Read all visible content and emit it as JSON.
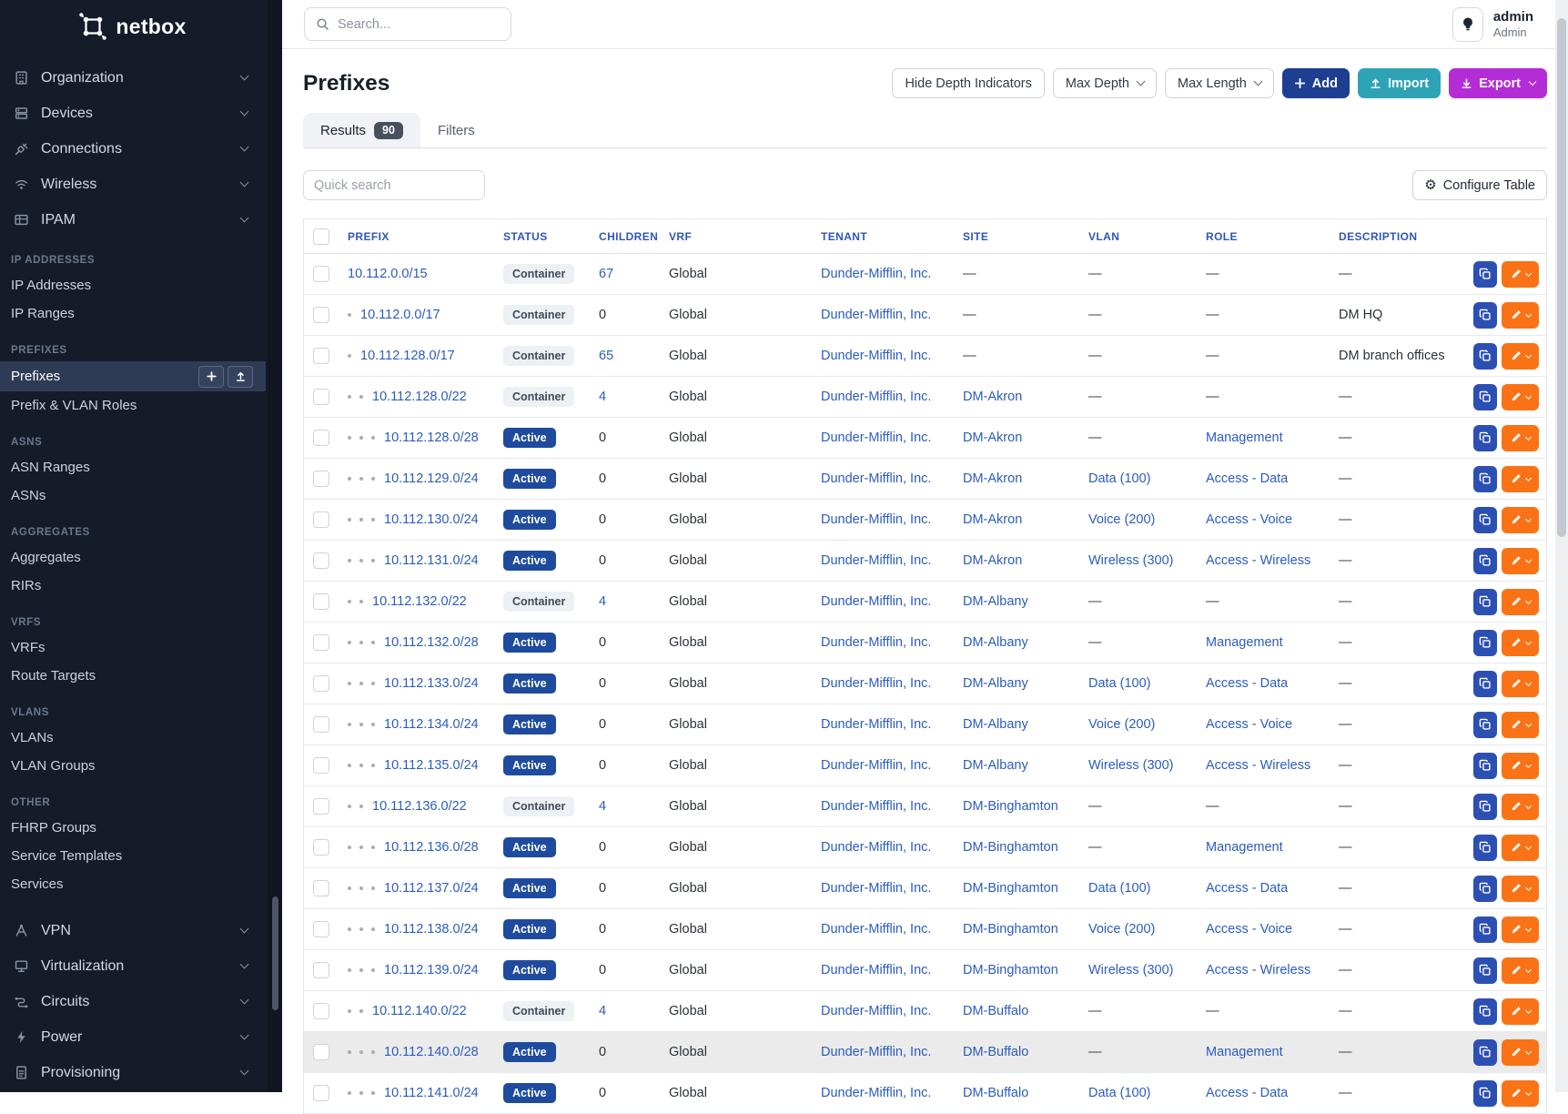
{
  "sidebar": {
    "brand": "netbox",
    "menus": [
      {
        "icon": "organization-icon",
        "label": "Organization"
      },
      {
        "icon": "devices-icon",
        "label": "Devices"
      },
      {
        "icon": "connections-icon",
        "label": "Connections"
      },
      {
        "icon": "wireless-icon",
        "label": "Wireless"
      },
      {
        "icon": "ipam-icon",
        "label": "IPAM"
      }
    ],
    "sections": [
      {
        "label": "IP ADDRESSES",
        "items": [
          {
            "label": "IP Addresses"
          },
          {
            "label": "IP Ranges"
          }
        ]
      },
      {
        "label": "PREFIXES",
        "items": [
          {
            "label": "Prefixes",
            "active": true
          },
          {
            "label": "Prefix & VLAN Roles"
          }
        ]
      },
      {
        "label": "ASNS",
        "items": [
          {
            "label": "ASN Ranges"
          },
          {
            "label": "ASNs"
          }
        ]
      },
      {
        "label": "AGGREGATES",
        "items": [
          {
            "label": "Aggregates"
          },
          {
            "label": "RIRs"
          }
        ]
      },
      {
        "label": "VRFS",
        "items": [
          {
            "label": "VRFs"
          },
          {
            "label": "Route Targets"
          }
        ]
      },
      {
        "label": "VLANS",
        "items": [
          {
            "label": "VLANs"
          },
          {
            "label": "VLAN Groups"
          }
        ]
      },
      {
        "label": "OTHER",
        "items": [
          {
            "label": "FHRP Groups"
          },
          {
            "label": "Service Templates"
          },
          {
            "label": "Services"
          }
        ]
      }
    ],
    "menus_bottom": [
      {
        "icon": "vpn-icon",
        "label": "VPN"
      },
      {
        "icon": "virtualization-icon",
        "label": "Virtualization"
      },
      {
        "icon": "circuits-icon",
        "label": "Circuits"
      },
      {
        "icon": "power-icon",
        "label": "Power"
      },
      {
        "icon": "provisioning-icon",
        "label": "Provisioning"
      }
    ]
  },
  "topbar": {
    "search_placeholder": "Search...",
    "user": {
      "name": "admin",
      "role": "Admin"
    }
  },
  "page": {
    "title": "Prefixes",
    "actions": {
      "hide_depth": "Hide Depth Indicators",
      "max_depth": "Max Depth",
      "max_length": "Max Length",
      "add": "Add",
      "import": "Import",
      "export": "Export"
    },
    "tabs": {
      "results": "Results",
      "results_count": "90",
      "filters": "Filters"
    },
    "quick_search_placeholder": "Quick search",
    "configure_table": "Configure Table"
  },
  "colors": {
    "link": "#2b5cbf",
    "active_badge": "#1e4b9d",
    "add_button": "#1d3e91",
    "import_button": "#2fa3b6",
    "export_button": "#b42cd6",
    "edit_button": "#f97316",
    "clone_button": "#2c4fb3",
    "sidebar_bg": "#151b29"
  },
  "table": {
    "headers": [
      "PREFIX",
      "STATUS",
      "CHILDREN",
      "VRF",
      "TENANT",
      "SITE",
      "VLAN",
      "ROLE",
      "DESCRIPTION"
    ],
    "rows": [
      {
        "depth": 0,
        "prefix": "10.112.0.0/15",
        "status": "Container",
        "children": "67",
        "vrf": "Global",
        "tenant": "Dunder-Mifflin, Inc.",
        "site": "—",
        "vlan": "—",
        "role": "—",
        "description": "—",
        "highlighted": false
      },
      {
        "depth": 1,
        "prefix": "10.112.0.0/17",
        "status": "Container",
        "children": "0",
        "vrf": "Global",
        "tenant": "Dunder-Mifflin, Inc.",
        "site": "—",
        "vlan": "—",
        "role": "—",
        "description": "DM HQ",
        "highlighted": false
      },
      {
        "depth": 1,
        "prefix": "10.112.128.0/17",
        "status": "Container",
        "children": "65",
        "vrf": "Global",
        "tenant": "Dunder-Mifflin, Inc.",
        "site": "—",
        "vlan": "—",
        "role": "—",
        "description": "DM branch offices",
        "highlighted": false
      },
      {
        "depth": 2,
        "prefix": "10.112.128.0/22",
        "status": "Container",
        "children": "4",
        "vrf": "Global",
        "tenant": "Dunder-Mifflin, Inc.",
        "site": "DM-Akron",
        "vlan": "—",
        "role": "—",
        "description": "—",
        "highlighted": false
      },
      {
        "depth": 3,
        "prefix": "10.112.128.0/28",
        "status": "Active",
        "children": "0",
        "vrf": "Global",
        "tenant": "Dunder-Mifflin, Inc.",
        "site": "DM-Akron",
        "vlan": "—",
        "role": "Management",
        "description": "—",
        "highlighted": false
      },
      {
        "depth": 3,
        "prefix": "10.112.129.0/24",
        "status": "Active",
        "children": "0",
        "vrf": "Global",
        "tenant": "Dunder-Mifflin, Inc.",
        "site": "DM-Akron",
        "vlan": "Data (100)",
        "role": "Access - Data",
        "description": "—",
        "highlighted": false
      },
      {
        "depth": 3,
        "prefix": "10.112.130.0/24",
        "status": "Active",
        "children": "0",
        "vrf": "Global",
        "tenant": "Dunder-Mifflin, Inc.",
        "site": "DM-Akron",
        "vlan": "Voice (200)",
        "role": "Access - Voice",
        "description": "—",
        "highlighted": false
      },
      {
        "depth": 3,
        "prefix": "10.112.131.0/24",
        "status": "Active",
        "children": "0",
        "vrf": "Global",
        "tenant": "Dunder-Mifflin, Inc.",
        "site": "DM-Akron",
        "vlan": "Wireless (300)",
        "role": "Access - Wireless",
        "description": "—",
        "highlighted": false
      },
      {
        "depth": 2,
        "prefix": "10.112.132.0/22",
        "status": "Container",
        "children": "4",
        "vrf": "Global",
        "tenant": "Dunder-Mifflin, Inc.",
        "site": "DM-Albany",
        "vlan": "—",
        "role": "—",
        "description": "—",
        "highlighted": false
      },
      {
        "depth": 3,
        "prefix": "10.112.132.0/28",
        "status": "Active",
        "children": "0",
        "vrf": "Global",
        "tenant": "Dunder-Mifflin, Inc.",
        "site": "DM-Albany",
        "vlan": "—",
        "role": "Management",
        "description": "—",
        "highlighted": false
      },
      {
        "depth": 3,
        "prefix": "10.112.133.0/24",
        "status": "Active",
        "children": "0",
        "vrf": "Global",
        "tenant": "Dunder-Mifflin, Inc.",
        "site": "DM-Albany",
        "vlan": "Data (100)",
        "role": "Access - Data",
        "description": "—",
        "highlighted": false
      },
      {
        "depth": 3,
        "prefix": "10.112.134.0/24",
        "status": "Active",
        "children": "0",
        "vrf": "Global",
        "tenant": "Dunder-Mifflin, Inc.",
        "site": "DM-Albany",
        "vlan": "Voice (200)",
        "role": "Access - Voice",
        "description": "—",
        "highlighted": false
      },
      {
        "depth": 3,
        "prefix": "10.112.135.0/24",
        "status": "Active",
        "children": "0",
        "vrf": "Global",
        "tenant": "Dunder-Mifflin, Inc.",
        "site": "DM-Albany",
        "vlan": "Wireless (300)",
        "role": "Access - Wireless",
        "description": "—",
        "highlighted": false
      },
      {
        "depth": 2,
        "prefix": "10.112.136.0/22",
        "status": "Container",
        "children": "4",
        "vrf": "Global",
        "tenant": "Dunder-Mifflin, Inc.",
        "site": "DM-Binghamton",
        "vlan": "—",
        "role": "—",
        "description": "—",
        "highlighted": false
      },
      {
        "depth": 3,
        "prefix": "10.112.136.0/28",
        "status": "Active",
        "children": "0",
        "vrf": "Global",
        "tenant": "Dunder-Mifflin, Inc.",
        "site": "DM-Binghamton",
        "vlan": "—",
        "role": "Management",
        "description": "—",
        "highlighted": false
      },
      {
        "depth": 3,
        "prefix": "10.112.137.0/24",
        "status": "Active",
        "children": "0",
        "vrf": "Global",
        "tenant": "Dunder-Mifflin, Inc.",
        "site": "DM-Binghamton",
        "vlan": "Data (100)",
        "role": "Access - Data",
        "description": "—",
        "highlighted": false
      },
      {
        "depth": 3,
        "prefix": "10.112.138.0/24",
        "status": "Active",
        "children": "0",
        "vrf": "Global",
        "tenant": "Dunder-Mifflin, Inc.",
        "site": "DM-Binghamton",
        "vlan": "Voice (200)",
        "role": "Access - Voice",
        "description": "—",
        "highlighted": false
      },
      {
        "depth": 3,
        "prefix": "10.112.139.0/24",
        "status": "Active",
        "children": "0",
        "vrf": "Global",
        "tenant": "Dunder-Mifflin, Inc.",
        "site": "DM-Binghamton",
        "vlan": "Wireless (300)",
        "role": "Access - Wireless",
        "description": "—",
        "highlighted": false
      },
      {
        "depth": 2,
        "prefix": "10.112.140.0/22",
        "status": "Container",
        "children": "4",
        "vrf": "Global",
        "tenant": "Dunder-Mifflin, Inc.",
        "site": "DM-Buffalo",
        "vlan": "—",
        "role": "—",
        "description": "—",
        "highlighted": false
      },
      {
        "depth": 3,
        "prefix": "10.112.140.0/28",
        "status": "Active",
        "children": "0",
        "vrf": "Global",
        "tenant": "Dunder-Mifflin, Inc.",
        "site": "DM-Buffalo",
        "vlan": "—",
        "role": "Management",
        "description": "—",
        "highlighted": true
      },
      {
        "depth": 3,
        "prefix": "10.112.141.0/24",
        "status": "Active",
        "children": "0",
        "vrf": "Global",
        "tenant": "Dunder-Mifflin, Inc.",
        "site": "DM-Buffalo",
        "vlan": "Data (100)",
        "role": "Access - Data",
        "description": "—",
        "highlighted": false
      }
    ]
  }
}
